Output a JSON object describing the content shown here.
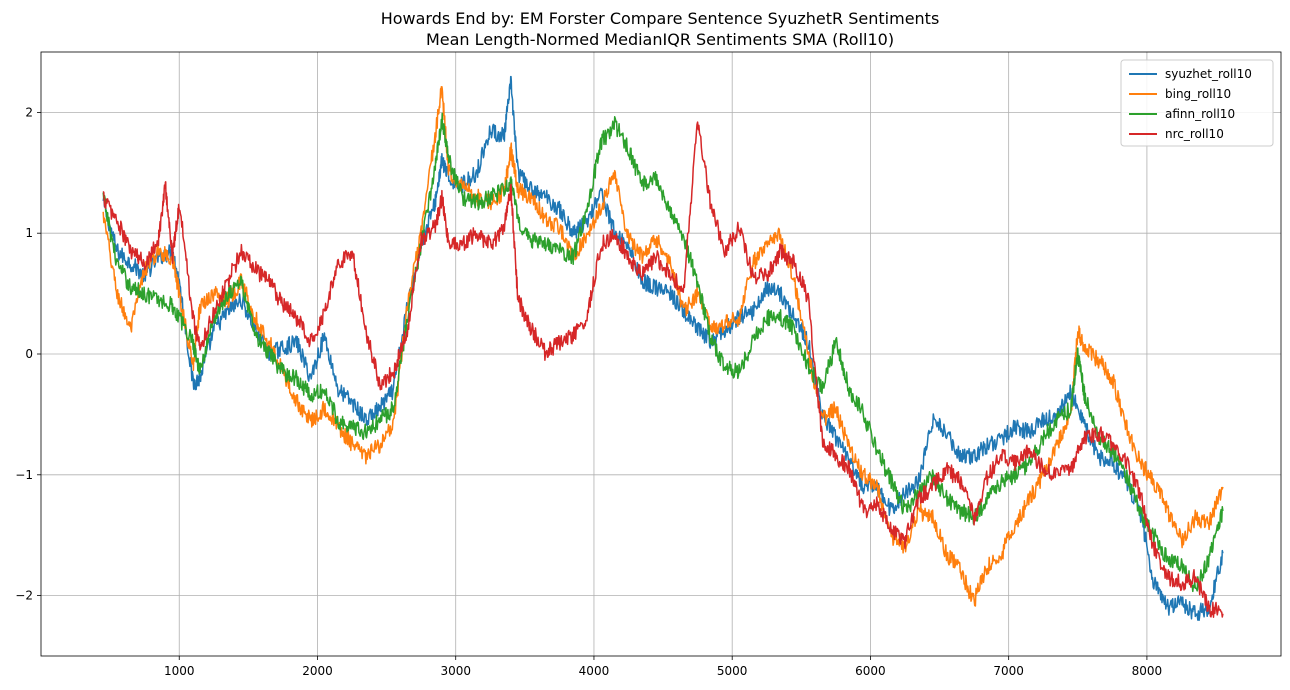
{
  "chart_data": {
    "type": "line",
    "title": "Howards End by: EM Forster Compare Sentence SyuzhetR Sentiments",
    "subtitle": "Mean Length-Normed MedianIQR Sentiments SMA (Roll10)",
    "xlabel": "",
    "ylabel": "",
    "xlim": [
      0,
      8970
    ],
    "ylim": [
      -2.5,
      2.5
    ],
    "x_ticks": [
      1000,
      2000,
      3000,
      4000,
      5000,
      6000,
      7000,
      8000
    ],
    "y_ticks": [
      -2,
      -1,
      0,
      1,
      2
    ],
    "y_tick_labels": [
      "−2",
      "−1",
      "0",
      "1",
      "2"
    ],
    "grid": true,
    "legend_position": "top-right",
    "series": [
      {
        "name": "syuzhet_roll10",
        "color": "#1f77b4",
        "x": [
          450,
          550,
          650,
          750,
          850,
          950,
          1000,
          1100,
          1150,
          1250,
          1350,
          1450,
          1550,
          1650,
          1750,
          1850,
          1950,
          2050,
          2150,
          2250,
          2350,
          2450,
          2550,
          2650,
          2750,
          2850,
          2900,
          2950,
          3050,
          3150,
          3250,
          3350,
          3400,
          3450,
          3550,
          3650,
          3750,
          3850,
          3950,
          4050,
          4150,
          4250,
          4350,
          4450,
          4550,
          4650,
          4750,
          4850,
          4950,
          5050,
          5150,
          5250,
          5350,
          5450,
          5550,
          5650,
          5750,
          5850,
          5950,
          6050,
          6150,
          6250,
          6350,
          6450,
          6550,
          6650,
          6750,
          6850,
          6950,
          7050,
          7150,
          7250,
          7350,
          7450,
          7550,
          7650,
          7750,
          7850,
          7950,
          8050,
          8150,
          8250,
          8350,
          8450,
          8550
        ],
        "values": [
          1.25,
          0.85,
          0.75,
          0.65,
          0.8,
          0.85,
          0.6,
          -0.25,
          -0.2,
          0.2,
          0.35,
          0.45,
          0.2,
          0.0,
          0.05,
          0.1,
          -0.2,
          0.15,
          -0.3,
          -0.4,
          -0.55,
          -0.45,
          -0.3,
          0.4,
          0.9,
          1.25,
          1.6,
          1.45,
          1.4,
          1.5,
          1.85,
          1.8,
          2.25,
          1.5,
          1.35,
          1.3,
          1.2,
          1.0,
          1.1,
          1.35,
          1.0,
          0.9,
          0.6,
          0.55,
          0.5,
          0.35,
          0.2,
          0.1,
          0.2,
          0.3,
          0.35,
          0.55,
          0.5,
          0.3,
          0.1,
          -0.5,
          -0.7,
          -0.9,
          -1.1,
          -1.1,
          -1.3,
          -1.15,
          -1.05,
          -0.55,
          -0.65,
          -0.85,
          -0.85,
          -0.75,
          -0.7,
          -0.6,
          -0.65,
          -0.55,
          -0.5,
          -0.3,
          -0.6,
          -0.85,
          -0.9,
          -1.05,
          -1.3,
          -1.9,
          -2.1,
          -2.05,
          -2.15,
          -2.1,
          -1.65
        ]
      },
      {
        "name": "bing_roll10",
        "color": "#ff7f0e",
        "x": [
          450,
          550,
          650,
          750,
          850,
          950,
          1000,
          1100,
          1150,
          1250,
          1350,
          1450,
          1550,
          1650,
          1750,
          1850,
          1950,
          2050,
          2150,
          2250,
          2350,
          2450,
          2550,
          2650,
          2750,
          2850,
          2900,
          2950,
          3050,
          3150,
          3250,
          3350,
          3400,
          3450,
          3550,
          3650,
          3750,
          3850,
          3950,
          4050,
          4150,
          4250,
          4350,
          4450,
          4550,
          4650,
          4750,
          4850,
          4950,
          5050,
          5150,
          5250,
          5350,
          5450,
          5550,
          5650,
          5750,
          5850,
          5950,
          6050,
          6150,
          6250,
          6350,
          6450,
          6550,
          6650,
          6750,
          6850,
          6950,
          7050,
          7150,
          7250,
          7350,
          7450,
          7500,
          7550,
          7650,
          7750,
          7850,
          7950,
          8050,
          8150,
          8250,
          8350,
          8450,
          8550
        ],
        "values": [
          1.15,
          0.5,
          0.2,
          0.7,
          0.85,
          0.8,
          0.5,
          -0.1,
          0.4,
          0.5,
          0.45,
          0.6,
          0.3,
          0.1,
          -0.15,
          -0.4,
          -0.55,
          -0.45,
          -0.6,
          -0.75,
          -0.85,
          -0.75,
          -0.6,
          0.4,
          1.0,
          1.8,
          2.2,
          1.5,
          1.4,
          1.3,
          1.25,
          1.35,
          1.7,
          1.35,
          1.3,
          1.1,
          1.05,
          0.8,
          1.0,
          1.2,
          1.5,
          0.95,
          0.8,
          0.95,
          0.75,
          0.35,
          0.5,
          0.2,
          0.25,
          0.3,
          0.75,
          0.9,
          1.0,
          0.6,
          0.0,
          -0.55,
          -0.45,
          -0.8,
          -1.0,
          -1.1,
          -1.5,
          -1.6,
          -1.3,
          -1.35,
          -1.65,
          -1.8,
          -2.05,
          -1.75,
          -1.65,
          -1.4,
          -1.2,
          -1.0,
          -0.75,
          -0.5,
          0.2,
          0.05,
          -0.05,
          -0.2,
          -0.6,
          -0.9,
          -1.05,
          -1.3,
          -1.55,
          -1.35,
          -1.4,
          -1.1
        ]
      },
      {
        "name": "afinn_roll10",
        "color": "#2ca02c",
        "x": [
          450,
          550,
          650,
          750,
          850,
          950,
          1000,
          1100,
          1150,
          1250,
          1350,
          1450,
          1550,
          1650,
          1750,
          1850,
          1950,
          2050,
          2150,
          2250,
          2350,
          2450,
          2550,
          2650,
          2750,
          2850,
          2900,
          2950,
          3050,
          3150,
          3250,
          3350,
          3400,
          3450,
          3550,
          3650,
          3750,
          3850,
          3950,
          4050,
          4150,
          4250,
          4350,
          4450,
          4550,
          4650,
          4750,
          4850,
          4950,
          5050,
          5150,
          5250,
          5350,
          5450,
          5550,
          5650,
          5750,
          5850,
          5950,
          6050,
          6150,
          6250,
          6350,
          6450,
          6550,
          6650,
          6750,
          6850,
          6950,
          7050,
          7150,
          7250,
          7350,
          7450,
          7500,
          7550,
          7650,
          7750,
          7850,
          7950,
          8050,
          8150,
          8250,
          8350,
          8450,
          8550
        ],
        "values": [
          1.3,
          0.75,
          0.55,
          0.5,
          0.45,
          0.4,
          0.3,
          0.1,
          -0.15,
          0.3,
          0.5,
          0.6,
          0.15,
          0.0,
          -0.15,
          -0.2,
          -0.35,
          -0.3,
          -0.55,
          -0.6,
          -0.65,
          -0.55,
          -0.45,
          0.3,
          0.9,
          1.55,
          1.95,
          1.6,
          1.3,
          1.25,
          1.3,
          1.35,
          1.45,
          1.1,
          0.95,
          0.9,
          0.85,
          0.8,
          1.2,
          1.75,
          1.9,
          1.7,
          1.4,
          1.45,
          1.2,
          0.95,
          0.6,
          0.1,
          -0.1,
          -0.15,
          0.1,
          0.3,
          0.3,
          0.2,
          -0.1,
          -0.3,
          0.1,
          -0.3,
          -0.5,
          -0.8,
          -1.05,
          -1.3,
          -1.15,
          -1.0,
          -1.2,
          -1.3,
          -1.35,
          -1.2,
          -1.05,
          -1.0,
          -0.9,
          -0.7,
          -0.55,
          -0.45,
          0.0,
          -0.35,
          -0.7,
          -0.8,
          -1.0,
          -1.3,
          -1.5,
          -1.7,
          -1.75,
          -1.95,
          -1.7,
          -1.3
        ]
      },
      {
        "name": "nrc_roll10",
        "color": "#d62728",
        "x": [
          450,
          550,
          650,
          750,
          850,
          900,
          950,
          1000,
          1100,
          1150,
          1250,
          1350,
          1450,
          1550,
          1650,
          1750,
          1850,
          1950,
          2050,
          2150,
          2250,
          2350,
          2450,
          2550,
          2650,
          2750,
          2850,
          2900,
          2950,
          3050,
          3150,
          3250,
          3350,
          3400,
          3450,
          3550,
          3650,
          3750,
          3850,
          3950,
          4050,
          4150,
          4250,
          4350,
          4450,
          4550,
          4650,
          4750,
          4850,
          4950,
          5050,
          5150,
          5250,
          5350,
          5450,
          5550,
          5650,
          5750,
          5850,
          5950,
          6050,
          6150,
          6250,
          6350,
          6450,
          6550,
          6650,
          6750,
          6850,
          6950,
          7050,
          7150,
          7250,
          7350,
          7450,
          7550,
          7650,
          7750,
          7850,
          7950,
          8050,
          8150,
          8250,
          8350,
          8450,
          8550
        ],
        "values": [
          1.3,
          1.1,
          0.85,
          0.75,
          0.95,
          1.4,
          0.8,
          1.25,
          0.3,
          0.05,
          0.35,
          0.6,
          0.85,
          0.7,
          0.6,
          0.4,
          0.3,
          0.1,
          0.35,
          0.75,
          0.85,
          0.2,
          -0.25,
          -0.15,
          0.2,
          0.95,
          1.05,
          1.3,
          0.9,
          0.9,
          1.0,
          0.9,
          1.05,
          1.35,
          0.45,
          0.2,
          0.0,
          0.1,
          0.15,
          0.3,
          0.9,
          1.0,
          0.8,
          0.65,
          0.8,
          0.65,
          0.55,
          1.95,
          1.2,
          0.85,
          1.05,
          0.65,
          0.65,
          0.85,
          0.75,
          0.45,
          -0.7,
          -0.85,
          -0.95,
          -1.3,
          -1.25,
          -1.45,
          -1.55,
          -1.2,
          -1.1,
          -0.95,
          -1.05,
          -1.35,
          -1.0,
          -0.85,
          -0.9,
          -0.8,
          -0.95,
          -1.0,
          -0.95,
          -0.7,
          -0.65,
          -0.75,
          -0.9,
          -1.15,
          -1.6,
          -1.85,
          -1.9,
          -1.85,
          -2.1,
          -2.15
        ]
      }
    ]
  }
}
